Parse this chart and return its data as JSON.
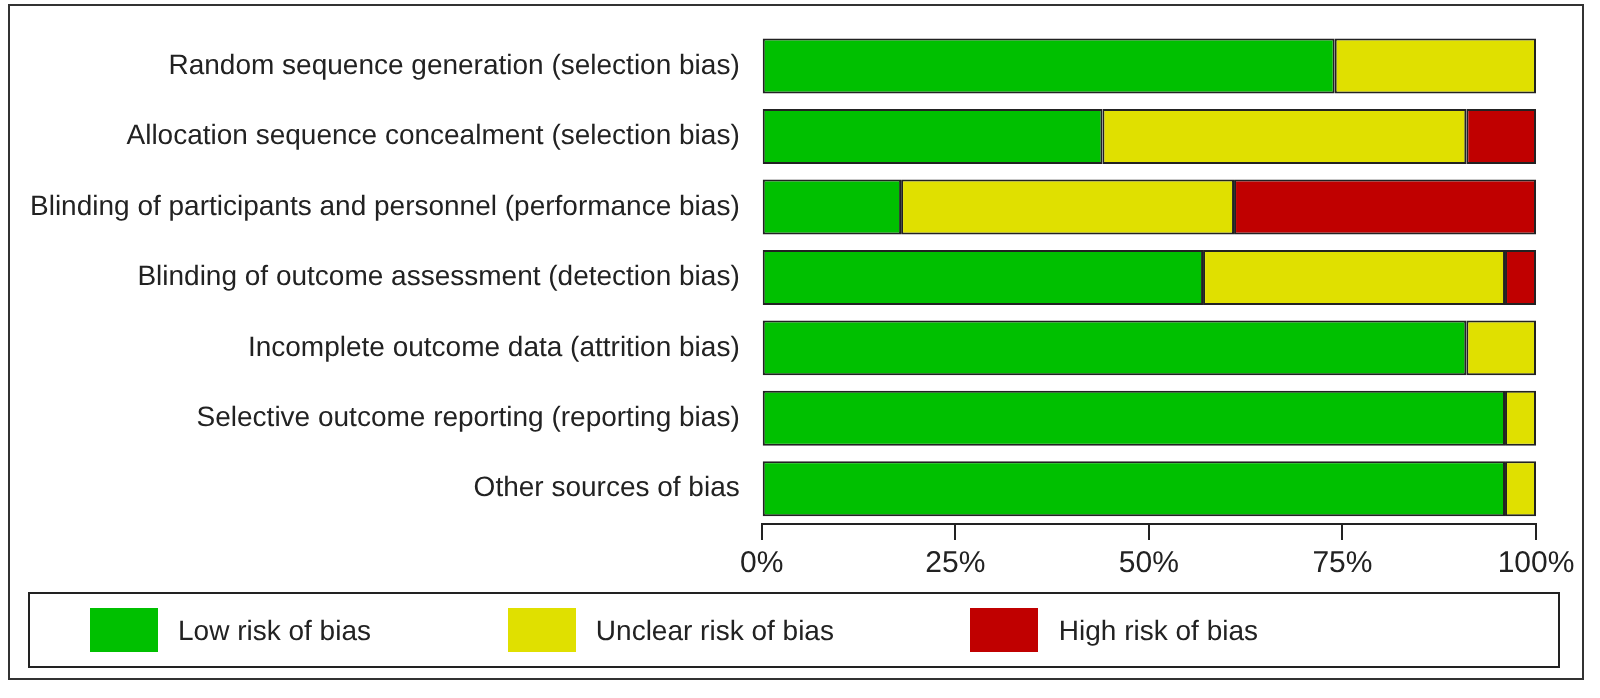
{
  "chart_data": {
    "type": "bar",
    "orientation": "horizontal",
    "stacked": true,
    "categories": [
      "Random sequence generation (selection bias)",
      "Allocation sequence concealment (selection bias)",
      "Blinding of participants and personnel (performance bias)",
      "Blinding of outcome assessment (detection bias)",
      "Incomplete outcome data (attrition bias)",
      "Selective outcome reporting (reporting bias)",
      "Other sources of bias"
    ],
    "series": [
      {
        "name": "Low risk of bias",
        "color": "#00c000",
        "values": [
          74,
          44,
          18,
          57,
          91,
          96,
          96
        ]
      },
      {
        "name": "Unclear risk of bias",
        "color": "#e0e000",
        "values": [
          26,
          47,
          43,
          39,
          9,
          4,
          4
        ]
      },
      {
        "name": "High risk of bias",
        "color": "#c00000",
        "values": [
          null,
          9,
          39,
          4,
          null,
          null,
          null
        ]
      }
    ],
    "xlim": [
      0,
      100
    ],
    "xticks": [
      {
        "value": 0,
        "label": "0%"
      },
      {
        "value": 25,
        "label": "25%"
      },
      {
        "value": 50,
        "label": "50%"
      },
      {
        "value": 75,
        "label": "75%"
      },
      {
        "value": 100,
        "label": "100%"
      }
    ],
    "grid": false,
    "legend": "bottom"
  }
}
